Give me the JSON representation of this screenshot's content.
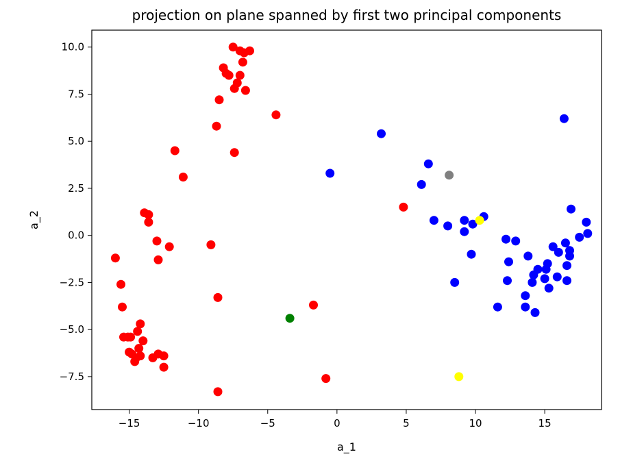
{
  "chart_data": {
    "type": "scatter",
    "title": "projection on plane spanned by first two principal components",
    "xlabel": "a_1",
    "ylabel": "a_2",
    "xlim": [
      -17.7,
      19.1
    ],
    "ylim": [
      -9.25,
      10.9
    ],
    "x_ticks": [
      -15,
      -10,
      -5,
      0,
      5,
      10,
      15
    ],
    "x_tick_labels": [
      "−15",
      "−10",
      "−5",
      "0",
      "5",
      "10",
      "15"
    ],
    "y_ticks": [
      -7.5,
      -5.0,
      -2.5,
      0.0,
      2.5,
      5.0,
      7.5,
      10.0
    ],
    "y_tick_labels": [
      "−7.5",
      "−5.0",
      "−2.5",
      "0.0",
      "2.5",
      "5.0",
      "7.5",
      "10.0"
    ],
    "grid": false,
    "series": [
      {
        "color": "#ff0000",
        "points": [
          [
            -7.5,
            10.0
          ],
          [
            -7.0,
            9.8
          ],
          [
            -6.7,
            9.7
          ],
          [
            -6.3,
            9.8
          ],
          [
            -8.2,
            8.9
          ],
          [
            -6.8,
            9.2
          ],
          [
            -8.0,
            8.6
          ],
          [
            -7.8,
            8.5
          ],
          [
            -7.0,
            8.5
          ],
          [
            -7.2,
            8.1
          ],
          [
            -7.4,
            7.8
          ],
          [
            -6.6,
            7.7
          ],
          [
            -8.5,
            7.2
          ],
          [
            -4.4,
            6.4
          ],
          [
            -8.7,
            5.8
          ],
          [
            -11.7,
            4.5
          ],
          [
            -7.4,
            4.4
          ],
          [
            -11.1,
            3.1
          ],
          [
            4.8,
            1.5
          ],
          [
            -13.9,
            1.2
          ],
          [
            -13.6,
            1.1
          ],
          [
            -13.6,
            0.7
          ],
          [
            -13.0,
            -0.3
          ],
          [
            -9.1,
            -0.5
          ],
          [
            -12.1,
            -0.6
          ],
          [
            -16.0,
            -1.2
          ],
          [
            -12.9,
            -1.3
          ],
          [
            -15.6,
            -2.6
          ],
          [
            -8.6,
            -3.3
          ],
          [
            -15.5,
            -3.8
          ],
          [
            -1.7,
            -3.7
          ],
          [
            -14.2,
            -4.7
          ],
          [
            -14.4,
            -5.1
          ],
          [
            -15.4,
            -5.4
          ],
          [
            -15.1,
            -5.4
          ],
          [
            -14.9,
            -5.4
          ],
          [
            -14.0,
            -5.6
          ],
          [
            -14.3,
            -6.0
          ],
          [
            -15.0,
            -6.2
          ],
          [
            -14.8,
            -6.3
          ],
          [
            -12.9,
            -6.3
          ],
          [
            -14.2,
            -6.4
          ],
          [
            -12.5,
            -6.4
          ],
          [
            -14.5,
            -6.5
          ],
          [
            -13.3,
            -6.5
          ],
          [
            -14.6,
            -6.7
          ],
          [
            -12.5,
            -7.0
          ],
          [
            -0.8,
            -7.6
          ],
          [
            -8.6,
            -8.3
          ]
        ]
      },
      {
        "color": "#0000ff",
        "points": [
          [
            16.4,
            6.2
          ],
          [
            3.2,
            5.4
          ],
          [
            6.6,
            3.8
          ],
          [
            -0.5,
            3.3
          ],
          [
            6.1,
            2.7
          ],
          [
            16.9,
            1.4
          ],
          [
            10.6,
            1.0
          ],
          [
            7.0,
            0.8
          ],
          [
            9.2,
            0.8
          ],
          [
            18.0,
            0.7
          ],
          [
            8.0,
            0.5
          ],
          [
            9.8,
            0.6
          ],
          [
            9.2,
            0.2
          ],
          [
            18.1,
            0.1
          ],
          [
            12.2,
            -0.2
          ],
          [
            12.9,
            -0.3
          ],
          [
            17.5,
            -0.1
          ],
          [
            16.5,
            -0.4
          ],
          [
            15.6,
            -0.6
          ],
          [
            16.0,
            -0.9
          ],
          [
            16.8,
            -0.8
          ],
          [
            16.8,
            -1.1
          ],
          [
            13.8,
            -1.1
          ],
          [
            9.7,
            -1.0
          ],
          [
            12.4,
            -1.4
          ],
          [
            15.2,
            -1.5
          ],
          [
            16.6,
            -1.6
          ],
          [
            14.5,
            -1.8
          ],
          [
            15.1,
            -1.8
          ],
          [
            14.2,
            -2.1
          ],
          [
            15.0,
            -2.3
          ],
          [
            15.9,
            -2.2
          ],
          [
            8.5,
            -2.5
          ],
          [
            12.3,
            -2.4
          ],
          [
            14.1,
            -2.5
          ],
          [
            16.6,
            -2.4
          ],
          [
            15.3,
            -2.8
          ],
          [
            13.6,
            -3.2
          ],
          [
            11.6,
            -3.8
          ],
          [
            13.6,
            -3.8
          ],
          [
            14.3,
            -4.1
          ]
        ]
      },
      {
        "color": "#808080",
        "points": [
          [
            8.1,
            3.2
          ]
        ]
      },
      {
        "color": "#ffff00",
        "points": [
          [
            10.3,
            0.8
          ],
          [
            8.8,
            -7.5
          ]
        ]
      },
      {
        "color": "#008000",
        "points": [
          [
            -3.4,
            -4.4
          ]
        ]
      }
    ]
  }
}
